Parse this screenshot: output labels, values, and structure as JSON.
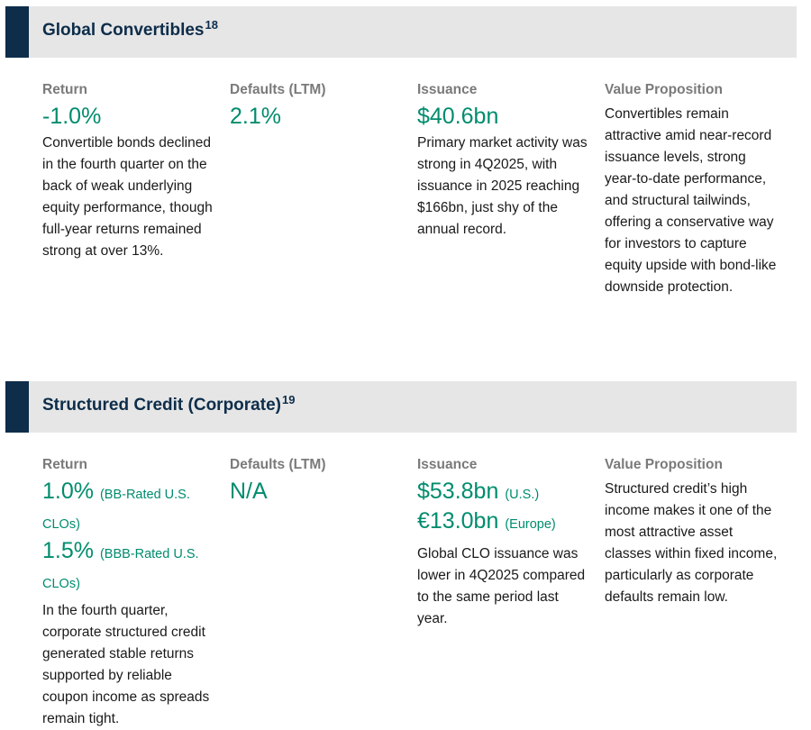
{
  "sections": [
    {
      "title": "Global Convertibles",
      "footnote": "18",
      "headers": {
        "return": "Return",
        "defaults": "Defaults (LTM)",
        "issuance": "Issuance",
        "value": "Value Proposition"
      },
      "return_value": "-1.0%",
      "return_text": "Convertible bonds declined in the fourth quarter on the back of weak underlying equity performance, though full-year returns remained strong at over 13%.",
      "defaults_value": "2.1%",
      "issuance_value": "$40.6bn",
      "issuance_text": "Primary market activity was strong in 4Q2025, with issuance in 2025 reaching $166bn, just shy of the annual record.",
      "value_text": "Convertibles remain attractive amid near-record issuance levels, strong year-to-date performance, and structural tailwinds, offering a conservative way for investors to capture equity upside with bond-like downside protection."
    },
    {
      "title": "Structured Credit (Corporate)",
      "footnote": "19",
      "headers": {
        "return": "Return",
        "defaults": "Defaults (LTM)",
        "issuance": "Issuance",
        "value": "Value Proposition"
      },
      "return_values": [
        {
          "value": "1.0%",
          "note": "(BB-Rated U.S. CLOs)"
        },
        {
          "value": "1.5%",
          "note": "(BBB-Rated U.S. CLOs)"
        }
      ],
      "return_text": "In the fourth quarter, corporate structured credit generated stable returns supported by reliable coupon income as spreads remain tight.",
      "defaults_value": "N/A",
      "issuance_values": [
        {
          "value": "$53.8bn",
          "note": "(U.S.)"
        },
        {
          "value": "€13.0bn",
          "note": "(Europe)"
        }
      ],
      "issuance_text": "Global CLO issuance was lower in 4Q2025 compared to the same period last year.",
      "value_text": "Structured credit’s high income makes it one of the most attractive asset classes within fixed income, particularly as corporate defaults remain low."
    }
  ],
  "colors": {
    "accent_navy": "#0d2d4a",
    "metric_green": "#008c6e",
    "header_gray": "#7a7a7a",
    "band_gray": "#e6e6e6"
  }
}
